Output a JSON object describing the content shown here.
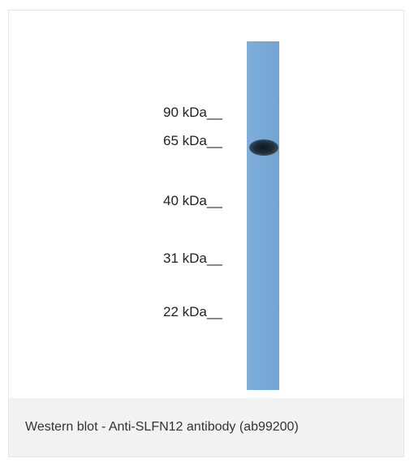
{
  "figure": {
    "markers": [
      {
        "label": "90 kDa__"
      },
      {
        "label": "65 kDa__"
      },
      {
        "label": "40 kDa__"
      },
      {
        "label": "31 kDa__"
      },
      {
        "label": "22 kDa__"
      }
    ],
    "caption": "Western blot - Anti-SLFN12 antibody (ab99200)",
    "colors": {
      "lane": "#78a8d6",
      "band": "#1a2a34",
      "caption_background": "#f2f2f2"
    }
  }
}
